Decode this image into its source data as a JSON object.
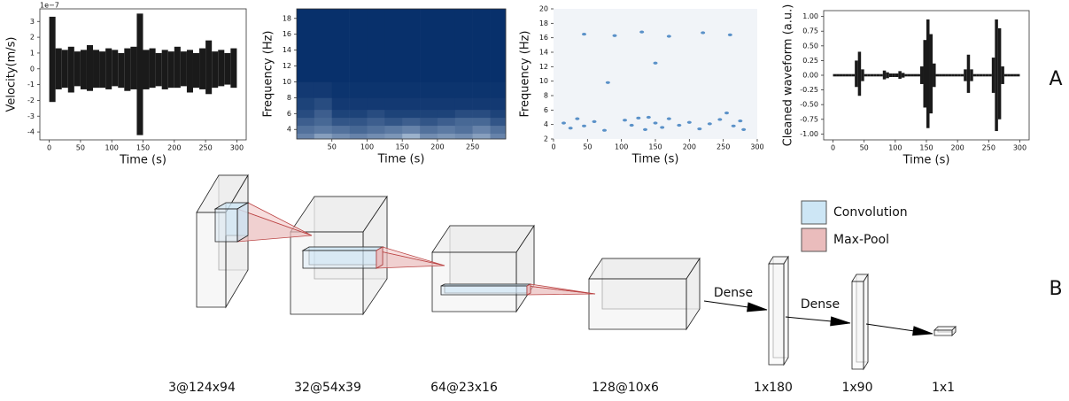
{
  "chart_data": [
    {
      "type": "band",
      "ylabel": "Velocity(m/s)",
      "xlabel": "Time (s)",
      "offset_text": "1e−7",
      "color": "#1a1a1a",
      "x": [
        0,
        10,
        20,
        30,
        40,
        50,
        60,
        70,
        80,
        90,
        100,
        110,
        120,
        130,
        140,
        150,
        160,
        170,
        180,
        190,
        200,
        210,
        220,
        230,
        240,
        250,
        260,
        270,
        280,
        290
      ],
      "step": 10,
      "series": [
        {
          "values": [
            3.3,
            1.3,
            1.2,
            1.4,
            1.1,
            1.2,
            1.5,
            1.2,
            1.1,
            1.3,
            1.2,
            1.0,
            1.3,
            1.4,
            3.5,
            1.2,
            1.3,
            1.0,
            1.2,
            1.1,
            1.4,
            1.1,
            1.2,
            1.0,
            1.3,
            1.8,
            1.1,
            1.2,
            1.0,
            1.3
          ]
        },
        {
          "values": [
            -2.1,
            -1.3,
            -1.2,
            -1.5,
            -1.1,
            -1.3,
            -1.4,
            -1.2,
            -1.2,
            -1.3,
            -1.1,
            -1.2,
            -1.4,
            -1.3,
            -4.2,
            -1.3,
            -1.2,
            -1.1,
            -1.3,
            -1.2,
            -1.2,
            -1.1,
            -1.5,
            -1.2,
            -1.3,
            -1.6,
            -1.2,
            -1.1,
            -1.0,
            -1.2
          ]
        }
      ],
      "xlim": [
        -15,
        315
      ],
      "xticks": [
        0,
        50,
        100,
        150,
        200,
        250,
        300
      ],
      "ylim": [
        -4.5,
        3.8
      ],
      "yticks": [
        -4,
        -3,
        -2,
        -1,
        0,
        1,
        2,
        3
      ]
    },
    {
      "type": "heatmap",
      "ylabel": "Frequency (Hz)",
      "xlabel": "Time (s)",
      "colormap": [
        "#08306b",
        "#dbe9f6"
      ],
      "xbins": [
        0,
        25,
        50,
        75,
        100,
        125,
        150,
        175,
        200,
        225,
        250,
        275,
        297
      ],
      "ybins": [
        2.8,
        3.5,
        4.5,
        5.5,
        6.5,
        8,
        10,
        19.2
      ],
      "z": [
        [
          0.45,
          0.6,
          0.5,
          0.45,
          0.5,
          0.55,
          0.7,
          0.5,
          0.55,
          0.5,
          0.6,
          0.45
        ],
        [
          0.35,
          0.4,
          0.35,
          0.3,
          0.35,
          0.4,
          0.45,
          0.35,
          0.4,
          0.35,
          0.45,
          0.35
        ],
        [
          0.25,
          0.3,
          0.2,
          0.2,
          0.25,
          0.2,
          0.25,
          0.2,
          0.25,
          0.3,
          0.3,
          0.2
        ],
        [
          0.15,
          0.25,
          0.1,
          0.1,
          0.15,
          0.1,
          0.1,
          0.1,
          0.1,
          0.15,
          0.15,
          0.1
        ],
        [
          0.1,
          0.15,
          0.05,
          0.05,
          0.05,
          0.05,
          0.05,
          0.05,
          0.05,
          0.05,
          0.05,
          0.05
        ],
        [
          0.05,
          0.05,
          0.02,
          0.02,
          0.02,
          0.02,
          0.02,
          0.02,
          0.02,
          0.02,
          0.02,
          0.02
        ],
        [
          0,
          0,
          0,
          0,
          0,
          0,
          0,
          0,
          0,
          0,
          0,
          0
        ]
      ],
      "xlim": [
        0,
        297
      ],
      "xticks": [
        50,
        100,
        150,
        200,
        250
      ],
      "ylim": [
        2.8,
        19.2
      ],
      "yticks": [
        4,
        6,
        8,
        10,
        12,
        14,
        16,
        18
      ]
    },
    {
      "type": "scatter",
      "ylabel": "Frequency (Hz)",
      "xlabel": "Time (s)",
      "color": "#3f7fbf",
      "background": "#f1f4f8",
      "x": [
        15,
        25,
        35,
        45,
        60,
        75,
        105,
        115,
        125,
        135,
        140,
        150,
        160,
        170,
        185,
        200,
        215,
        230,
        245,
        255,
        265,
        275,
        280,
        45,
        90,
        130,
        170,
        220,
        260,
        150,
        80
      ],
      "values": [
        4.2,
        3.5,
        4.8,
        3.8,
        4.4,
        3.2,
        4.6,
        3.9,
        4.9,
        3.3,
        5.0,
        4.2,
        3.6,
        4.8,
        3.9,
        4.3,
        3.4,
        4.1,
        4.7,
        5.6,
        3.8,
        4.5,
        3.3,
        16.5,
        16.3,
        16.8,
        16.2,
        16.7,
        16.4,
        12.5,
        9.8
      ],
      "xlim": [
        0,
        300
      ],
      "xticks": [
        0,
        50,
        100,
        150,
        200,
        250,
        300
      ],
      "ylim": [
        2,
        20
      ],
      "yticks": [
        2,
        4,
        6,
        8,
        10,
        12,
        14,
        16,
        18,
        20
      ]
    },
    {
      "type": "band",
      "ylabel": "Cleaned waveform (a.u.)",
      "xlabel": "Time (s)",
      "color": "#1a1a1a",
      "x": [
        0,
        5,
        10,
        15,
        20,
        25,
        30,
        35,
        40,
        45,
        50,
        55,
        60,
        65,
        70,
        75,
        80,
        85,
        90,
        95,
        100,
        105,
        110,
        115,
        120,
        125,
        130,
        135,
        140,
        145,
        150,
        155,
        160,
        165,
        170,
        175,
        180,
        185,
        190,
        195,
        200,
        205,
        210,
        215,
        220,
        225,
        230,
        235,
        240,
        245,
        250,
        255,
        260,
        265,
        270,
        275,
        280,
        285,
        290,
        295
      ],
      "step": 5,
      "series": [
        {
          "values": [
            0.02,
            0.02,
            0.02,
            0.02,
            0.02,
            0.02,
            0.02,
            0.25,
            0.4,
            0.1,
            0.02,
            0.02,
            0.02,
            0.02,
            0.02,
            0.02,
            0.08,
            0.05,
            0.03,
            0.03,
            0.03,
            0.07,
            0.04,
            0.02,
            0.02,
            0.02,
            0.02,
            0.02,
            0.15,
            0.6,
            0.95,
            0.7,
            0.2,
            0.02,
            0.02,
            0.02,
            0.02,
            0.02,
            0.02,
            0.02,
            0.02,
            0.02,
            0.1,
            0.35,
            0.1,
            0.02,
            0.02,
            0.02,
            0.02,
            0.02,
            0.02,
            0.3,
            0.95,
            0.8,
            0.15,
            0.02,
            0.02,
            0.02,
            0.02,
            0.02
          ]
        },
        {
          "values": [
            -0.02,
            -0.02,
            -0.02,
            -0.02,
            -0.02,
            -0.02,
            -0.02,
            -0.2,
            -0.35,
            -0.1,
            -0.02,
            -0.02,
            -0.02,
            -0.02,
            -0.02,
            -0.02,
            -0.07,
            -0.05,
            -0.03,
            -0.03,
            -0.03,
            -0.06,
            -0.04,
            -0.02,
            -0.02,
            -0.02,
            -0.02,
            -0.02,
            -0.15,
            -0.55,
            -0.9,
            -0.65,
            -0.2,
            -0.02,
            -0.02,
            -0.02,
            -0.02,
            -0.02,
            -0.02,
            -0.02,
            -0.02,
            -0.02,
            -0.1,
            -0.3,
            -0.1,
            -0.02,
            -0.02,
            -0.02,
            -0.02,
            -0.02,
            -0.02,
            -0.3,
            -0.95,
            -0.75,
            -0.15,
            -0.02,
            -0.02,
            -0.02,
            -0.02,
            -0.02
          ]
        }
      ],
      "xlim": [
        -15,
        315
      ],
      "xticks": [
        0,
        50,
        100,
        150,
        200,
        250,
        300
      ],
      "ylim": [
        -1.1,
        1.1
      ],
      "yticks": [
        {
          "value": -1,
          "label": "-1.00"
        },
        {
          "value": -0.75,
          "label": "-0.75"
        },
        {
          "value": -0.5,
          "label": "-0.50"
        },
        {
          "value": -0.25,
          "label": "-0.25"
        },
        {
          "value": 0,
          "label": "0.00"
        },
        {
          "value": 0.25,
          "label": "0.25"
        },
        {
          "value": 0.5,
          "label": "0.50"
        },
        {
          "value": 0.75,
          "label": "0.75"
        },
        {
          "value": 1,
          "label": "1.00"
        }
      ]
    }
  ],
  "panel_labels": [
    "A",
    "B"
  ],
  "diagram": {
    "layers": [
      "3@124x94",
      "32@54x39",
      "64@23x16",
      "128@10x6",
      "1x180",
      "1x90",
      "1x1"
    ],
    "legend": [
      "Convolution",
      "Max-Pool"
    ],
    "arrows": [
      "Dense",
      "Dense"
    ]
  }
}
